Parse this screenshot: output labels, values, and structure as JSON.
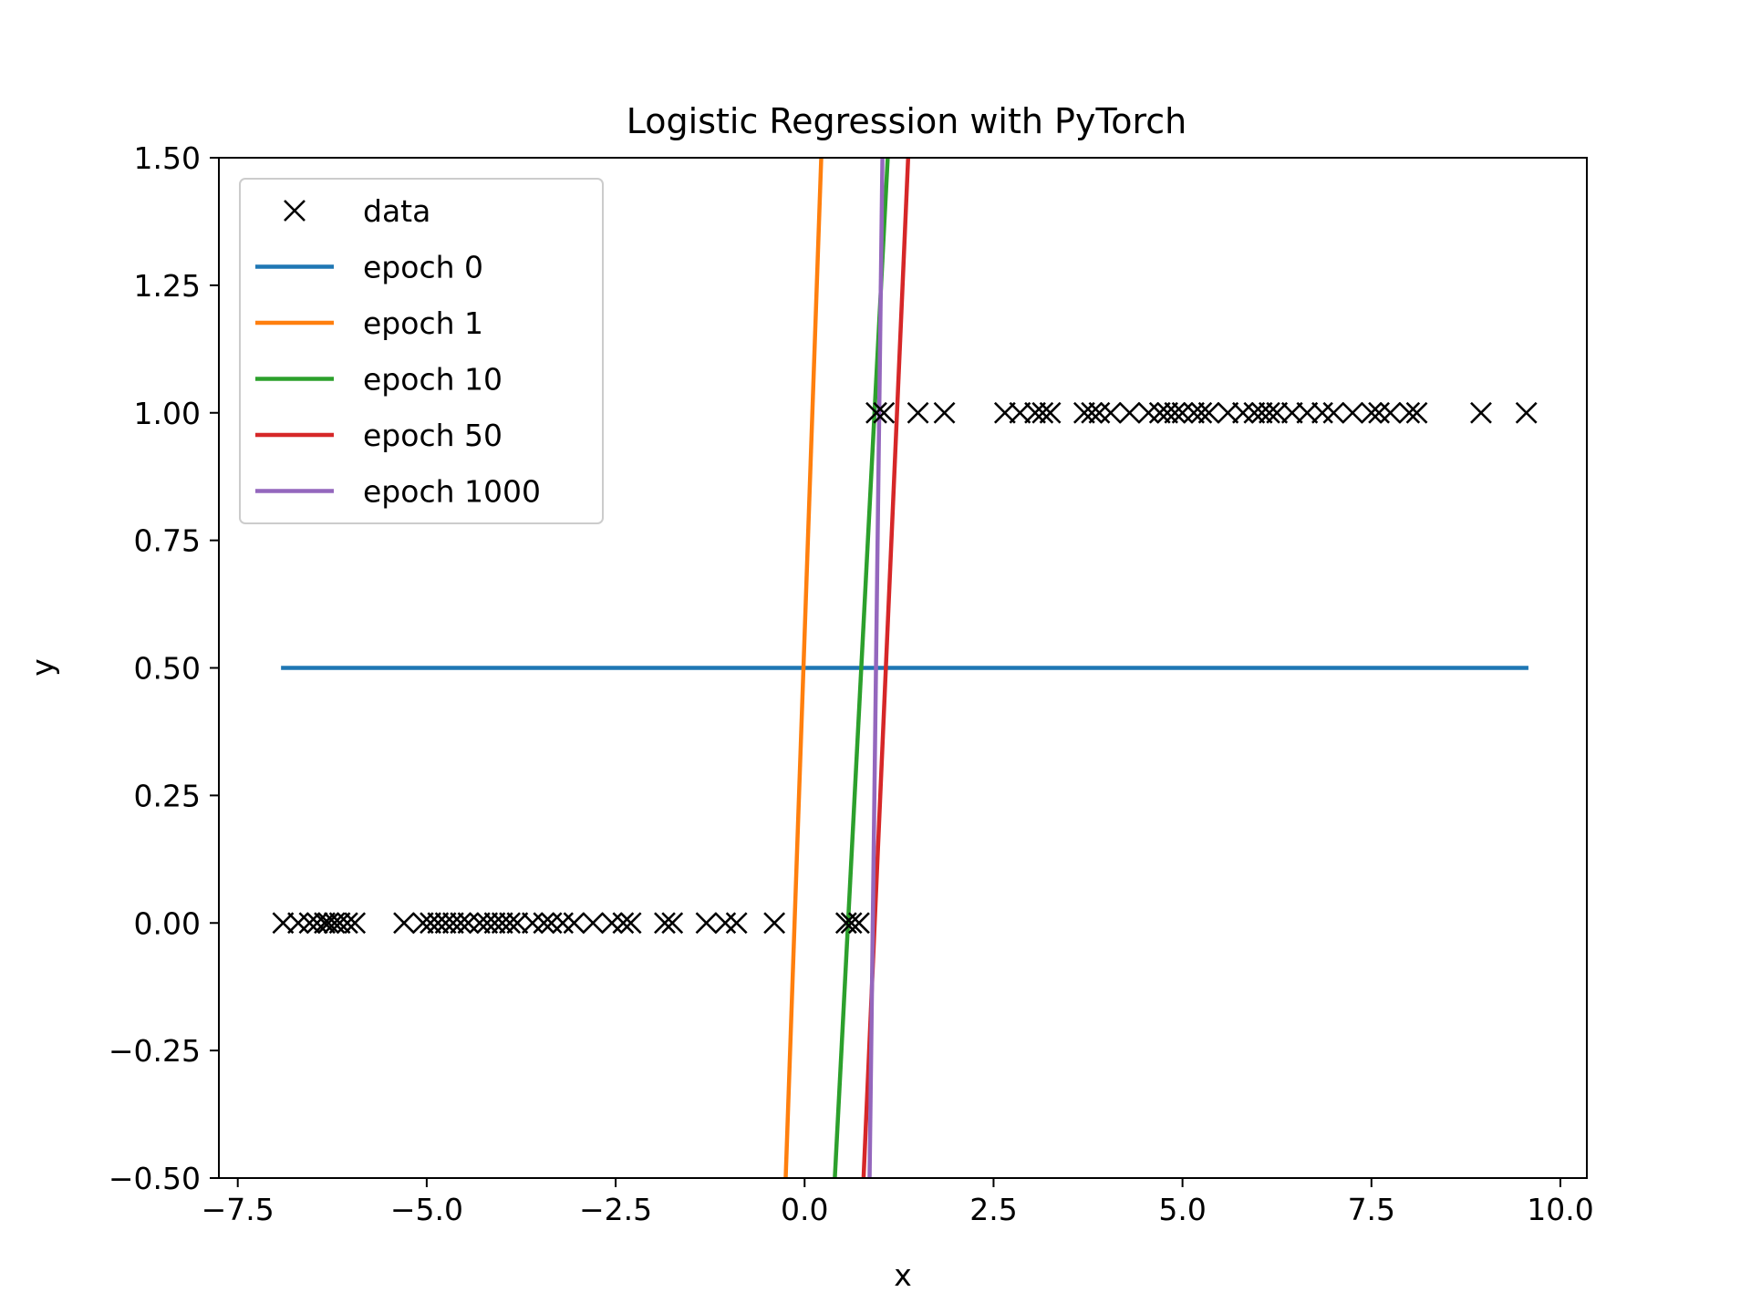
{
  "chart_data": {
    "type": "line",
    "title": "Logistic Regression with PyTorch",
    "xlabel": "x",
    "ylabel": "y",
    "xlim": [
      -7.75,
      10.35
    ],
    "ylim": [
      -0.5,
      1.5
    ],
    "grid": false,
    "legend_position": "top-left",
    "x_ticks": [
      {
        "value": -7.5,
        "label": "−7.5"
      },
      {
        "value": -5.0,
        "label": "−5.0"
      },
      {
        "value": -2.5,
        "label": "−2.5"
      },
      {
        "value": 0.0,
        "label": "0.0"
      },
      {
        "value": 2.5,
        "label": "2.5"
      },
      {
        "value": 5.0,
        "label": "5.0"
      },
      {
        "value": 7.5,
        "label": "7.5"
      },
      {
        "value": 10.0,
        "label": "10.0"
      }
    ],
    "y_ticks": [
      {
        "value": -0.5,
        "label": "−0.50"
      },
      {
        "value": -0.25,
        "label": "−0.25"
      },
      {
        "value": 0.0,
        "label": "0.00"
      },
      {
        "value": 0.25,
        "label": "0.25"
      },
      {
        "value": 0.5,
        "label": "0.50"
      },
      {
        "value": 0.75,
        "label": "0.75"
      },
      {
        "value": 1.0,
        "label": "1.00"
      },
      {
        "value": 1.25,
        "label": "1.25"
      },
      {
        "value": 1.5,
        "label": "1.50"
      }
    ],
    "data_series": {
      "name": "data",
      "marker": "x",
      "color": "#000000",
      "points": [
        {
          "x": -6.9,
          "y": 0
        },
        {
          "x": -6.7,
          "y": 0
        },
        {
          "x": -6.55,
          "y": 0
        },
        {
          "x": -6.45,
          "y": 0
        },
        {
          "x": -6.35,
          "y": 0
        },
        {
          "x": -6.3,
          "y": 0
        },
        {
          "x": -6.22,
          "y": 0
        },
        {
          "x": -6.15,
          "y": 0
        },
        {
          "x": -6.05,
          "y": 0
        },
        {
          "x": -5.95,
          "y": 0
        },
        {
          "x": -5.3,
          "y": 0
        },
        {
          "x": -5.05,
          "y": 0
        },
        {
          "x": -4.95,
          "y": 0
        },
        {
          "x": -4.85,
          "y": 0
        },
        {
          "x": -4.75,
          "y": 0
        },
        {
          "x": -4.65,
          "y": 0
        },
        {
          "x": -4.55,
          "y": 0
        },
        {
          "x": -4.45,
          "y": 0
        },
        {
          "x": -4.3,
          "y": 0
        },
        {
          "x": -4.2,
          "y": 0
        },
        {
          "x": -4.1,
          "y": 0
        },
        {
          "x": -4.0,
          "y": 0
        },
        {
          "x": -3.9,
          "y": 0
        },
        {
          "x": -3.8,
          "y": 0
        },
        {
          "x": -3.6,
          "y": 0
        },
        {
          "x": -3.45,
          "y": 0
        },
        {
          "x": -3.35,
          "y": 0
        },
        {
          "x": -3.2,
          "y": 0
        },
        {
          "x": -3.05,
          "y": 0
        },
        {
          "x": -2.8,
          "y": 0
        },
        {
          "x": -2.55,
          "y": 0
        },
        {
          "x": -2.4,
          "y": 0
        },
        {
          "x": -2.3,
          "y": 0
        },
        {
          "x": -1.85,
          "y": 0
        },
        {
          "x": -1.75,
          "y": 0
        },
        {
          "x": -1.3,
          "y": 0
        },
        {
          "x": -1.05,
          "y": 0
        },
        {
          "x": -0.9,
          "y": 0
        },
        {
          "x": -0.4,
          "y": 0
        },
        {
          "x": 0.55,
          "y": 0
        },
        {
          "x": 0.62,
          "y": 0
        },
        {
          "x": 0.72,
          "y": 0
        },
        {
          "x": 0.95,
          "y": 1
        },
        {
          "x": 1.05,
          "y": 1
        },
        {
          "x": 1.5,
          "y": 1
        },
        {
          "x": 1.85,
          "y": 1
        },
        {
          "x": 2.65,
          "y": 1
        },
        {
          "x": 2.85,
          "y": 1
        },
        {
          "x": 3.05,
          "y": 1
        },
        {
          "x": 3.15,
          "y": 1
        },
        {
          "x": 3.25,
          "y": 1
        },
        {
          "x": 3.7,
          "y": 1
        },
        {
          "x": 3.8,
          "y": 1
        },
        {
          "x": 3.9,
          "y": 1
        },
        {
          "x": 4.05,
          "y": 1
        },
        {
          "x": 4.3,
          "y": 1
        },
        {
          "x": 4.55,
          "y": 1
        },
        {
          "x": 4.7,
          "y": 1
        },
        {
          "x": 4.8,
          "y": 1
        },
        {
          "x": 4.9,
          "y": 1
        },
        {
          "x": 5.0,
          "y": 1
        },
        {
          "x": 5.15,
          "y": 1
        },
        {
          "x": 5.25,
          "y": 1
        },
        {
          "x": 5.35,
          "y": 1
        },
        {
          "x": 5.6,
          "y": 1
        },
        {
          "x": 5.8,
          "y": 1
        },
        {
          "x": 5.95,
          "y": 1
        },
        {
          "x": 6.05,
          "y": 1
        },
        {
          "x": 6.15,
          "y": 1
        },
        {
          "x": 6.25,
          "y": 1
        },
        {
          "x": 6.45,
          "y": 1
        },
        {
          "x": 6.65,
          "y": 1
        },
        {
          "x": 6.85,
          "y": 1
        },
        {
          "x": 7.0,
          "y": 1
        },
        {
          "x": 7.25,
          "y": 1
        },
        {
          "x": 7.5,
          "y": 1
        },
        {
          "x": 7.6,
          "y": 1
        },
        {
          "x": 7.75,
          "y": 1
        },
        {
          "x": 8.0,
          "y": 1
        },
        {
          "x": 8.1,
          "y": 1
        },
        {
          "x": 8.95,
          "y": 1
        },
        {
          "x": 9.55,
          "y": 1
        }
      ]
    },
    "series": [
      {
        "name": "epoch 0",
        "color": "#1f77b4",
        "x": [
          -6.9,
          9.55
        ],
        "y": [
          0.5,
          0.5
        ]
      },
      {
        "name": "epoch 1",
        "color": "#ff7f0e",
        "x": [
          -0.25,
          0.22
        ],
        "y": [
          -0.5,
          1.5
        ]
      },
      {
        "name": "epoch 10",
        "color": "#2ca02c",
        "x": [
          0.4,
          1.1
        ],
        "y": [
          -0.5,
          1.5
        ]
      },
      {
        "name": "epoch 50",
        "color": "#d62728",
        "x": [
          0.78,
          1.37
        ],
        "y": [
          -0.5,
          1.5
        ]
      },
      {
        "name": "epoch 1000",
        "color": "#9467bd",
        "x": [
          0.86,
          1.03
        ],
        "y": [
          -0.5,
          1.5
        ]
      }
    ]
  }
}
